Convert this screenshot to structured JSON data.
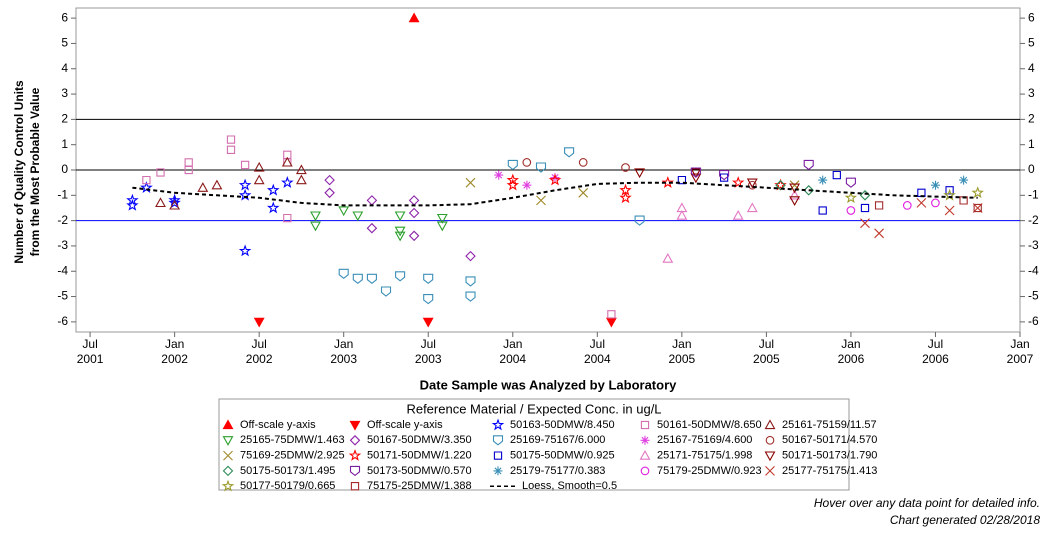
{
  "chart_data": {
    "type": "scatter",
    "y_label": [
      "Number of Quality Control Units",
      "from the Most Probable Value"
    ],
    "x_label": "Date Sample was Analyzed by Laboratory",
    "legend_title": "Reference Material / Expected Conc. in ug/L",
    "notes": [
      "Hover over any data point for detailed info.",
      "Chart generated 02/28/2018"
    ],
    "xlim": [
      "2001-06",
      "2007-01"
    ],
    "xticks": [
      {
        "value": "2001-07",
        "label": "Jul\n2001"
      },
      {
        "value": "2002-01",
        "label": "Jan\n2002"
      },
      {
        "value": "2002-07",
        "label": "Jul\n2002"
      },
      {
        "value": "2003-01",
        "label": "Jan\n2003"
      },
      {
        "value": "2003-07",
        "label": "Jul\n2003"
      },
      {
        "value": "2004-01",
        "label": "Jan\n2004"
      },
      {
        "value": "2004-07",
        "label": "Jul\n2004"
      },
      {
        "value": "2005-01",
        "label": "Jan\n2005"
      },
      {
        "value": "2005-07",
        "label": "Jul\n2005"
      },
      {
        "value": "2006-01",
        "label": "Jan\n2006"
      },
      {
        "value": "2006-07",
        "label": "Jul\n2006"
      },
      {
        "value": "2007-01",
        "label": "Jan\n2007"
      }
    ],
    "ylim": [
      -6.4,
      6.4
    ],
    "yticks": [
      -6,
      -5,
      -4,
      -3,
      -2,
      -1,
      0,
      1,
      2,
      3,
      4,
      5,
      6
    ],
    "ref_lines": [
      {
        "value": 2,
        "color": "#000000"
      },
      {
        "value": 0,
        "color": "#000000"
      },
      {
        "value": -2,
        "color": "#0000ff"
      }
    ],
    "series": [
      {
        "name": "Off-scale y-axis",
        "color": "#ff0000",
        "marker": "triangle-filled",
        "x": [
          "2003-06"
        ],
        "values": [
          6
        ]
      },
      {
        "name": "Off-scale y-axis",
        "color": "#ff0000",
        "marker": "triangle-down-filled",
        "x": [
          "2002-07",
          "2003-07",
          "2004-08"
        ],
        "values": [
          -6,
          -6,
          -6
        ]
      },
      {
        "name": "50163-50DMW/8.450",
        "color": "#0000ff",
        "marker": "star",
        "x": [
          "2001-10",
          "2001-10",
          "2001-11",
          "2002-01",
          "2002-01",
          "2002-06",
          "2002-06",
          "2002-06",
          "2002-08",
          "2002-08",
          "2002-09"
        ],
        "values": [
          -1.2,
          -1.4,
          -0.7,
          -1.2,
          -1.3,
          -0.6,
          -1.0,
          -3.2,
          -1.5,
          -0.8,
          -0.5
        ]
      },
      {
        "name": "50161-50DMW/8.650",
        "color": "#d36fae",
        "marker": "square",
        "x": [
          "2001-11",
          "2001-12",
          "2002-02",
          "2002-02",
          "2002-05",
          "2002-05",
          "2002-06",
          "2002-09",
          "2002-09",
          "2002-09",
          "2004-08"
        ],
        "values": [
          -0.4,
          -0.1,
          0.3,
          0.0,
          0.8,
          1.2,
          0.2,
          0.3,
          0.6,
          -1.9,
          -5.7
        ]
      },
      {
        "name": "25161-75159/11.57",
        "color": "#8b1a1a",
        "marker": "triangle",
        "x": [
          "2001-12",
          "2002-01",
          "2002-03",
          "2002-04",
          "2002-07",
          "2002-07",
          "2002-09",
          "2002-10",
          "2002-10"
        ],
        "values": [
          -1.3,
          -1.4,
          -0.7,
          -0.6,
          0.1,
          -0.4,
          0.3,
          0.0,
          -0.4
        ]
      },
      {
        "name": "25165-75DMW/1.463",
        "color": "#2ca02c",
        "marker": "triangle-down",
        "x": [
          "2002-11",
          "2002-11",
          "2003-01",
          "2003-02",
          "2003-05",
          "2003-05",
          "2003-05",
          "2003-08",
          "2003-08"
        ],
        "values": [
          -1.8,
          -2.2,
          -1.6,
          -1.8,
          -1.8,
          -2.4,
          -2.6,
          -2.2,
          -1.9
        ]
      },
      {
        "name": "50167-50DMW/3.350",
        "color": "#8e24aa",
        "marker": "diamond",
        "x": [
          "2002-12",
          "2002-12",
          "2003-03",
          "2003-03",
          "2003-06",
          "2003-06",
          "2003-06",
          "2003-10"
        ],
        "values": [
          -0.4,
          -0.9,
          -1.2,
          -2.3,
          -1.2,
          -2.6,
          -1.7,
          -3.4
        ]
      },
      {
        "name": "25169-75167/6.000",
        "color": "#3a8fb7",
        "marker": "shield",
        "x": [
          "2003-01",
          "2003-02",
          "2003-03",
          "2003-04",
          "2003-05",
          "2003-07",
          "2003-07",
          "2003-10",
          "2003-10",
          "2004-01",
          "2004-03",
          "2004-05",
          "2004-10"
        ],
        "values": [
          -4.1,
          -4.3,
          -4.3,
          -4.8,
          -4.2,
          -4.3,
          -5.1,
          -4.4,
          -5.0,
          0.2,
          0.1,
          0.7,
          -2.0
        ]
      },
      {
        "name": "25167-75169/4.600",
        "color": "#e040e0",
        "marker": "asterisk",
        "x": [
          "2003-12",
          "2004-02",
          "2004-04"
        ],
        "values": [
          -0.2,
          -0.6,
          -0.3
        ]
      },
      {
        "name": "50167-50171/4.570",
        "color": "#a0302b",
        "marker": "circle",
        "x": [
          "2004-02",
          "2004-06",
          "2004-09",
          "2005-06"
        ],
        "values": [
          0.3,
          0.3,
          0.1,
          -0.6
        ]
      },
      {
        "name": "75169-25DMW/2.925",
        "color": "#a08a2a",
        "marker": "x",
        "x": [
          "2003-10",
          "2004-03",
          "2004-06",
          "2005-09"
        ],
        "values": [
          -0.5,
          -1.2,
          -0.9,
          -0.6
        ]
      },
      {
        "name": "50171-50DMW/1.220",
        "color": "#ff0000",
        "marker": "star",
        "x": [
          "2004-01",
          "2004-01",
          "2004-04",
          "2004-09",
          "2004-09",
          "2004-12",
          "2005-05",
          "2005-08"
        ],
        "values": [
          -0.4,
          -0.6,
          -0.4,
          -0.8,
          -1.1,
          -0.5,
          -0.5,
          -0.6
        ]
      },
      {
        "name": "50175-50DMW/0.925",
        "color": "#0000cd",
        "marker": "square",
        "x": [
          "2005-01",
          "2005-04",
          "2005-11",
          "2005-12",
          "2006-02",
          "2006-06",
          "2006-08"
        ],
        "values": [
          -0.4,
          -0.3,
          -1.6,
          -0.2,
          -1.5,
          -0.9,
          -0.8
        ]
      },
      {
        "name": "25171-75175/1.998",
        "color": "#e377c2",
        "marker": "triangle",
        "x": [
          "2004-12",
          "2005-01",
          "2005-01",
          "2005-05",
          "2005-06",
          "2005-09"
        ],
        "values": [
          -3.5,
          -1.5,
          -1.8,
          -1.8,
          -1.5,
          -1.0
        ]
      },
      {
        "name": "50171-50173/1.790",
        "color": "#8b0000",
        "marker": "triangle-down",
        "x": [
          "2004-10",
          "2005-02",
          "2005-02",
          "2005-06",
          "2005-09",
          "2005-09"
        ],
        "values": [
          -0.1,
          -0.1,
          -0.3,
          -0.5,
          -0.7,
          -1.2
        ]
      },
      {
        "name": "50175-50173/1.495",
        "color": "#2e8b57",
        "marker": "diamond",
        "x": [
          "2005-08",
          "2005-10",
          "2006-02"
        ],
        "values": [
          -0.6,
          -0.8,
          -1.0
        ]
      },
      {
        "name": "50173-50DMW/0.570",
        "color": "#7b1fa2",
        "marker": "shield",
        "x": [
          "2005-02",
          "2005-04",
          "2005-10",
          "2006-01"
        ],
        "values": [
          -0.1,
          -0.2,
          0.2,
          -0.5
        ]
      },
      {
        "name": "25179-75177/0.383",
        "color": "#3a8fb7",
        "marker": "asterisk",
        "x": [
          "2005-11",
          "2006-07",
          "2006-09"
        ],
        "values": [
          -0.4,
          -0.6,
          -0.4
        ]
      },
      {
        "name": "75179-25DMW/0.923",
        "color": "#e020e0",
        "marker": "circle",
        "x": [
          "2006-01",
          "2006-05",
          "2006-07"
        ],
        "values": [
          -1.6,
          -1.4,
          -1.3
        ]
      },
      {
        "name": "25177-75175/1.413",
        "color": "#c0392b",
        "marker": "x",
        "x": [
          "2006-02",
          "2006-03",
          "2006-06",
          "2006-08",
          "2006-10"
        ],
        "values": [
          -2.1,
          -2.5,
          -1.3,
          -1.6,
          -1.5
        ]
      },
      {
        "name": "50177-50179/0.665",
        "color": "#9a9a2a",
        "marker": "star",
        "x": [
          "2006-01",
          "2006-08",
          "2006-10"
        ],
        "values": [
          -1.1,
          -1.0,
          -0.9
        ]
      },
      {
        "name": "75175-25DMW/1.388",
        "color": "#a52a2a",
        "marker": "square",
        "x": [
          "2006-03",
          "2006-09",
          "2006-10"
        ],
        "values": [
          -1.4,
          -1.2,
          -1.5
        ]
      },
      {
        "name": "Loess, Smooth=0.5",
        "color": "#000000",
        "marker": "dashed-line",
        "x": [
          "2001-10",
          "2002-01",
          "2002-04",
          "2002-07",
          "2002-10",
          "2003-01",
          "2003-04",
          "2003-07",
          "2003-10",
          "2004-01",
          "2004-04",
          "2004-07",
          "2004-10",
          "2005-01",
          "2005-04",
          "2005-07",
          "2005-10",
          "2006-01",
          "2006-04",
          "2006-07",
          "2006-10"
        ],
        "values": [
          -0.7,
          -0.9,
          -1.0,
          -1.1,
          -1.3,
          -1.4,
          -1.4,
          -1.4,
          -1.35,
          -1.1,
          -0.8,
          -0.55,
          -0.5,
          -0.5,
          -0.6,
          -0.7,
          -0.8,
          -0.9,
          -1.0,
          -1.05,
          -1.1
        ]
      }
    ]
  }
}
